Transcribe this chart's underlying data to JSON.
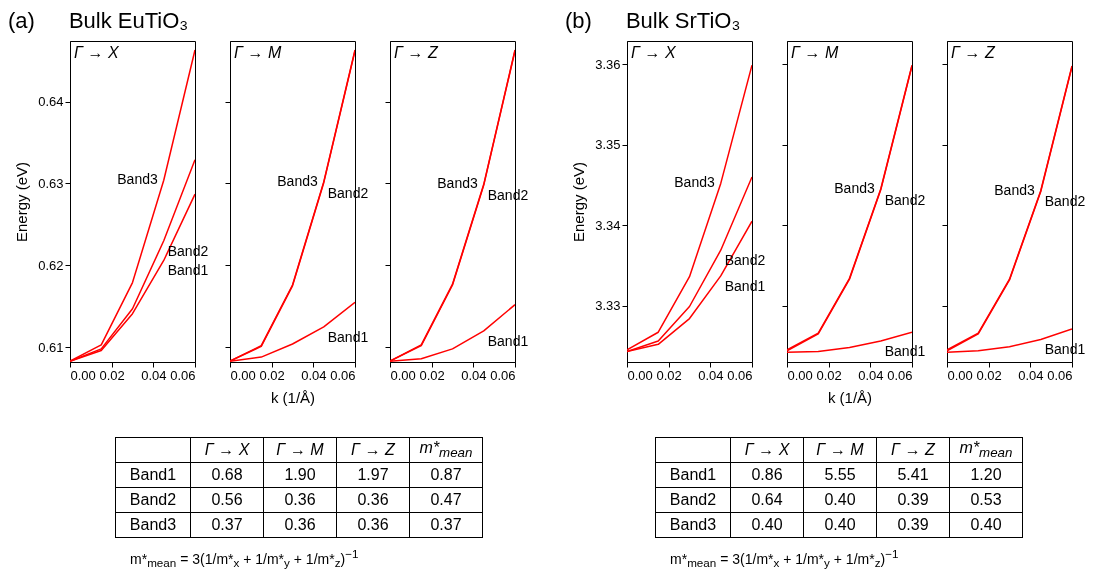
{
  "chart_data": [
    {
      "type": "line",
      "title": "Γ → X",
      "ylabel": "Energy (eV)",
      "x": [
        0,
        0.015,
        0.03,
        0.045,
        0.06
      ],
      "xlim": [
        0,
        0.06
      ],
      "xticks": [
        {
          "value": 0,
          "label": "0.00"
        },
        {
          "value": 0.02,
          "label": "0.02"
        },
        {
          "value": 0.04,
          "label": "0.04"
        },
        {
          "value": 0.06,
          "label": "0.06"
        }
      ],
      "ylim": [
        0.6082,
        0.6474
      ],
      "yticks": [
        0.61,
        0.62,
        0.63,
        0.64
      ],
      "series": [
        {
          "name": "Band3",
          "color": "#ff0000",
          "values": [
            0.6083,
            0.6103,
            0.6179,
            0.6304,
            0.6463
          ]
        },
        {
          "name": "Band2",
          "color": "#ff0000",
          "values": [
            0.6083,
            0.6098,
            0.6147,
            0.623,
            0.6329
          ]
        },
        {
          "name": "Band1",
          "color": "#ff0000",
          "values": [
            0.6083,
            0.6096,
            0.6141,
            0.6206,
            0.6287
          ]
        }
      ],
      "annotations": [
        "(a)",
        "Bulk EuTiO₃"
      ]
    },
    {
      "type": "line",
      "title": "Γ → M",
      "xlabel": "k (1/Å)",
      "x": [
        0,
        0.015,
        0.03,
        0.045,
        0.06
      ],
      "xlim": [
        0,
        0.06
      ],
      "xticks": [
        {
          "value": 0,
          "label": "0.00"
        },
        {
          "value": 0.02,
          "label": "0.02"
        },
        {
          "value": 0.04,
          "label": "0.04"
        },
        {
          "value": 0.06,
          "label": "0.06"
        }
      ],
      "ylim": [
        0.6082,
        0.6474
      ],
      "yticks": [
        0.61,
        0.62,
        0.63,
        0.64
      ],
      "tick_labels": "x",
      "series": [
        {
          "name": "Band3",
          "color": "#ff0000",
          "values": [
            0.6083,
            0.6102,
            0.6176,
            0.6302,
            0.6463
          ]
        },
        {
          "name": "Band2",
          "color": "#ff0000",
          "values": [
            0.6083,
            0.6101,
            0.6175,
            0.6301,
            0.6462
          ]
        },
        {
          "name": "Band1",
          "color": "#ff0000",
          "values": [
            0.6083,
            0.6088,
            0.6104,
            0.6125,
            0.6155
          ]
        }
      ]
    },
    {
      "type": "line",
      "title": "Γ → Z",
      "x": [
        0,
        0.015,
        0.03,
        0.045,
        0.06
      ],
      "xlim": [
        0,
        0.06
      ],
      "xticks": [
        {
          "value": 0,
          "label": "0.00"
        },
        {
          "value": 0.02,
          "label": "0.02"
        },
        {
          "value": 0.04,
          "label": "0.04"
        },
        {
          "value": 0.06,
          "label": "0.06"
        }
      ],
      "ylim": [
        0.6082,
        0.6474
      ],
      "yticks": [
        0.61,
        0.62,
        0.63,
        0.64
      ],
      "tick_labels": "x",
      "series": [
        {
          "name": "Band3",
          "color": "#ff0000",
          "values": [
            0.6083,
            0.6103,
            0.6177,
            0.6299,
            0.6463
          ]
        },
        {
          "name": "Band2",
          "color": "#ff0000",
          "values": [
            0.6083,
            0.6102,
            0.6176,
            0.6298,
            0.6462
          ]
        },
        {
          "name": "Band1",
          "color": "#ff0000",
          "values": [
            0.6083,
            0.6086,
            0.6098,
            0.612,
            0.6152
          ]
        }
      ]
    },
    {
      "type": "line",
      "title": "Γ → X",
      "ylabel": "Energy (eV)",
      "x": [
        0,
        0.015,
        0.03,
        0.045,
        0.06
      ],
      "xlim": [
        0,
        0.06
      ],
      "xticks": [
        {
          "value": 0,
          "label": "0.00"
        },
        {
          "value": 0.02,
          "label": "0.02"
        },
        {
          "value": 0.04,
          "label": "0.04"
        },
        {
          "value": 0.06,
          "label": "0.06"
        }
      ],
      "ylim": [
        3.323,
        3.3629
      ],
      "yticks": [
        3.33,
        3.34,
        3.35,
        3.36
      ],
      "series": [
        {
          "name": "Band3",
          "color": "#ff0000",
          "values": [
            3.3245,
            3.3267,
            3.3336,
            3.3452,
            3.3599
          ]
        },
        {
          "name": "Band2",
          "color": "#ff0000",
          "values": [
            3.3243,
            3.3256,
            3.3299,
            3.3369,
            3.346
          ]
        },
        {
          "name": "Band1",
          "color": "#ff0000",
          "values": [
            3.3243,
            3.3252,
            3.3284,
            3.3337,
            3.3405
          ]
        }
      ],
      "annotations": [
        "(b)",
        "Bulk SrTiO₃"
      ]
    },
    {
      "type": "line",
      "title": "Γ → M",
      "xlabel": "k (1/Å)",
      "x": [
        0,
        0.015,
        0.03,
        0.045,
        0.06
      ],
      "xlim": [
        0,
        0.06
      ],
      "xticks": [
        {
          "value": 0,
          "label": "0.00"
        },
        {
          "value": 0.02,
          "label": "0.02"
        },
        {
          "value": 0.04,
          "label": "0.04"
        },
        {
          "value": 0.06,
          "label": "0.06"
        }
      ],
      "ylim": [
        3.323,
        3.3629
      ],
      "yticks": [
        3.33,
        3.34,
        3.35,
        3.36
      ],
      "tick_labels": "x",
      "series": [
        {
          "name": "Band3",
          "color": "#ff0000",
          "values": [
            3.3245,
            3.3266,
            3.3334,
            3.3445,
            3.3599
          ]
        },
        {
          "name": "Band2",
          "color": "#ff0000",
          "values": [
            3.3244,
            3.3265,
            3.3333,
            3.3444,
            3.3598
          ]
        },
        {
          "name": "Band1",
          "color": "#ff0000",
          "values": [
            3.3242,
            3.3243,
            3.3248,
            3.3256,
            3.3267
          ]
        }
      ]
    },
    {
      "type": "line",
      "title": "Γ → Z",
      "x": [
        0,
        0.015,
        0.03,
        0.045,
        0.06
      ],
      "xlim": [
        0,
        0.06
      ],
      "xticks": [
        {
          "value": 0,
          "label": "0.00"
        },
        {
          "value": 0.02,
          "label": "0.02"
        },
        {
          "value": 0.04,
          "label": "0.04"
        },
        {
          "value": 0.06,
          "label": "0.06"
        }
      ],
      "ylim": [
        3.323,
        3.3629
      ],
      "yticks": [
        3.33,
        3.34,
        3.35,
        3.36
      ],
      "tick_labels": "x",
      "series": [
        {
          "name": "Band3",
          "color": "#ff0000",
          "values": [
            3.3245,
            3.3266,
            3.3333,
            3.3443,
            3.3598
          ]
        },
        {
          "name": "Band2",
          "color": "#ff0000",
          "values": [
            3.3244,
            3.3265,
            3.3332,
            3.3442,
            3.3597
          ]
        },
        {
          "name": "Band1",
          "color": "#ff0000",
          "values": [
            3.3242,
            3.3244,
            3.3249,
            3.3258,
            3.3271
          ]
        }
      ]
    },
    {
      "type": "other",
      "categories": [
        "Γ → X",
        "Γ → M",
        "Γ → Z",
        "m*$_{mean}$"
      ],
      "y_categories": [
        "Band1",
        "Band2",
        "Band3"
      ],
      "cell_labels": [
        [
          "0.68",
          "1.90",
          "1.97",
          "0.87"
        ],
        [
          "0.56",
          "0.36",
          "0.36",
          "0.47"
        ],
        [
          "0.37",
          "0.36",
          "0.36",
          "0.37"
        ]
      ],
      "annotations": [
        "m*$_{mean}$ = 3(1/m*$_{x}$ + 1/m*$_{y}$ + 1/m*$_{z}$)$^{−1}$"
      ]
    },
    {
      "type": "other",
      "categories": [
        "Γ → X",
        "Γ → M",
        "Γ → Z",
        "m*$_{mean}$"
      ],
      "y_categories": [
        "Band1",
        "Band2",
        "Band3"
      ],
      "cell_labels": [
        [
          "0.86",
          "5.55",
          "5.41",
          "1.20"
        ],
        [
          "0.64",
          "0.40",
          "0.39",
          "0.53"
        ],
        [
          "0.40",
          "0.40",
          "0.39",
          "0.40"
        ]
      ],
      "annotations": [
        "m*$_{mean}$ = 3(1/m*$_{x}$ + 1/m*$_{y}$ + 1/m*$_{z}$)$^{−1}$"
      ]
    }
  ]
}
